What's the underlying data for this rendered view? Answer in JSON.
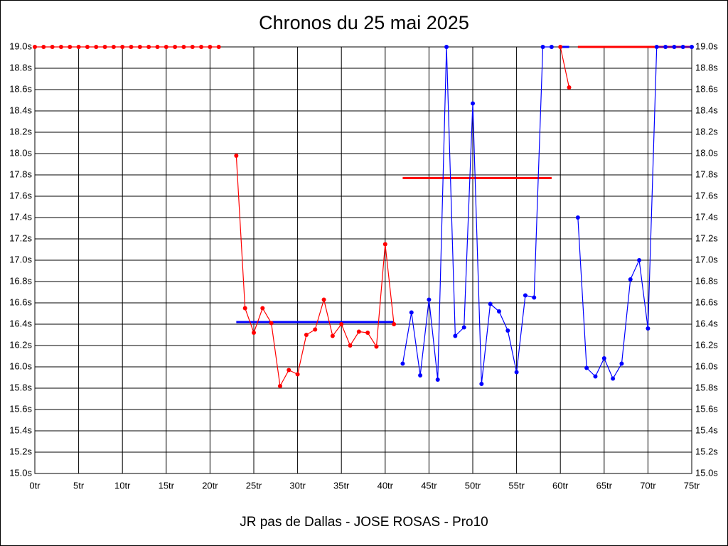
{
  "chart_data": {
    "type": "line",
    "title": "Chronos du 25 mai 2025",
    "subtitle": "JR pas de Dallas - JOSE ROSAS - Pro10",
    "xlim": [
      0,
      75
    ],
    "xticks": [
      {
        "value": 0,
        "label": "0tr"
      },
      {
        "value": 5,
        "label": "5tr"
      },
      {
        "value": 10,
        "label": "10tr"
      },
      {
        "value": 15,
        "label": "15tr"
      },
      {
        "value": 20,
        "label": "20tr"
      },
      {
        "value": 25,
        "label": "25tr"
      },
      {
        "value": 30,
        "label": "30tr"
      },
      {
        "value": 35,
        "label": "35tr"
      },
      {
        "value": 40,
        "label": "40tr"
      },
      {
        "value": 45,
        "label": "45tr"
      },
      {
        "value": 50,
        "label": "50tr"
      },
      {
        "value": 55,
        "label": "55tr"
      },
      {
        "value": 60,
        "label": "60tr"
      },
      {
        "value": 65,
        "label": "65tr"
      },
      {
        "value": 70,
        "label": "70tr"
      },
      {
        "value": 75,
        "label": "75tr"
      }
    ],
    "ylim": [
      15.0,
      19.0
    ],
    "yticks": [
      {
        "value": 15.0,
        "label": "15.0s"
      },
      {
        "value": 15.2,
        "label": "15.2s"
      },
      {
        "value": 15.4,
        "label": "15.4s"
      },
      {
        "value": 15.6,
        "label": "15.6s"
      },
      {
        "value": 15.8,
        "label": "15.8s"
      },
      {
        "value": 16.0,
        "label": "16.0s"
      },
      {
        "value": 16.2,
        "label": "16.2s"
      },
      {
        "value": 16.4,
        "label": "16.4s"
      },
      {
        "value": 16.6,
        "label": "16.6s"
      },
      {
        "value": 16.8,
        "label": "16.8s"
      },
      {
        "value": 17.0,
        "label": "17.0s"
      },
      {
        "value": 17.2,
        "label": "17.2s"
      },
      {
        "value": 17.4,
        "label": "17.4s"
      },
      {
        "value": 17.6,
        "label": "17.6s"
      },
      {
        "value": 17.8,
        "label": "17.8s"
      },
      {
        "value": 18.0,
        "label": "18.0s"
      },
      {
        "value": 18.2,
        "label": "18.2s"
      },
      {
        "value": 18.4,
        "label": "18.4s"
      },
      {
        "value": 18.6,
        "label": "18.6s"
      },
      {
        "value": 18.8,
        "label": "18.8s"
      },
      {
        "value": 19.0,
        "label": "19.0s"
      }
    ],
    "grid": true,
    "series": [
      {
        "color": "#ff0000",
        "x": [
          0,
          1,
          2,
          3,
          4,
          5,
          6,
          7,
          8,
          9,
          10,
          11,
          12,
          13,
          14,
          15,
          16,
          17,
          18,
          19,
          20,
          21
        ],
        "values": [
          19.0,
          19.0,
          19.0,
          19.0,
          19.0,
          19.0,
          19.0,
          19.0,
          19.0,
          19.0,
          19.0,
          19.0,
          19.0,
          19.0,
          19.0,
          19.0,
          19.0,
          19.0,
          19.0,
          19.0,
          19.0,
          19.0
        ]
      },
      {
        "color": "#ff0000",
        "x": [
          23,
          24,
          25,
          26,
          27,
          28,
          29,
          30,
          31,
          32,
          33,
          34,
          35,
          36,
          37,
          38,
          39,
          40,
          41
        ],
        "values": [
          17.98,
          16.55,
          16.32,
          16.55,
          16.41,
          15.82,
          15.97,
          15.93,
          16.3,
          16.35,
          16.63,
          16.29,
          16.4,
          16.2,
          16.33,
          16.32,
          16.19,
          17.15,
          16.4
        ]
      },
      {
        "color": "#0000ff",
        "x": [
          42,
          43,
          44,
          45,
          46,
          47,
          48,
          49,
          50,
          51,
          52,
          53,
          54,
          55,
          56,
          57,
          58,
          59
        ],
        "values": [
          16.03,
          16.51,
          15.92,
          16.63,
          15.88,
          19.0,
          16.29,
          16.37,
          18.47,
          15.84,
          16.59,
          16.52,
          16.34,
          15.95,
          16.67,
          16.65,
          19.0,
          19.0
        ]
      },
      {
        "color": "#ff0000",
        "x": [
          60,
          61
        ],
        "values": [
          19.0,
          18.62
        ]
      },
      {
        "color": "#0000ff",
        "x": [
          62,
          63,
          64,
          65,
          66,
          67,
          68,
          69,
          70,
          71,
          72,
          73,
          74,
          75
        ],
        "values": [
          17.4,
          15.99,
          15.91,
          16.08,
          15.89,
          16.03,
          16.82,
          17.0,
          16.36,
          19.0,
          19.0,
          19.0,
          19.0,
          19.0
        ]
      }
    ],
    "averages": [
      {
        "color": "#0000ff",
        "from": 23,
        "to": 41,
        "value": 16.42
      },
      {
        "color": "#ff0000",
        "from": 42,
        "to": 59,
        "value": 17.77
      },
      {
        "color": "#0000ff",
        "from": 60,
        "to": 61,
        "value": 19.0
      },
      {
        "color": "#ff0000",
        "from": 62,
        "to": 75,
        "value": 19.0
      }
    ]
  }
}
